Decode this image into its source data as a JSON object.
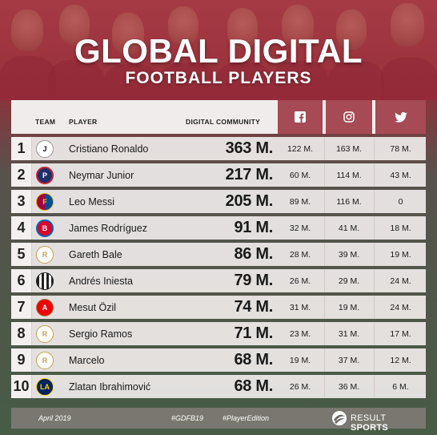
{
  "title": {
    "main": "GLOBAL DIGITAL",
    "sub": "FOOTBALL PLAYERS"
  },
  "columns": {
    "team": "TEAM",
    "player": "PLAYER",
    "digital": "DIGITAL COMMUNITY",
    "facebook_icon": "facebook-icon",
    "instagram_icon": "instagram-icon",
    "twitter_icon": "twitter-icon"
  },
  "colors": {
    "accent": "#a64a55",
    "row_bg": "#f0ecec"
  },
  "players": [
    {
      "rank": "1",
      "team_icon": "juventus-crest",
      "name": "Cristiano Ronaldo",
      "digital": "363 M.",
      "facebook": "122 M.",
      "instagram": "163 M.",
      "twitter": "78 M."
    },
    {
      "rank": "2",
      "team_icon": "psg-crest",
      "name": "Neymar Junior",
      "digital": "217 M.",
      "facebook": "60 M.",
      "instagram": "114 M.",
      "twitter": "43 M."
    },
    {
      "rank": "3",
      "team_icon": "barcelona-crest",
      "name": "Leo Messi",
      "digital": "205 M.",
      "facebook": "89 M.",
      "instagram": "116 M.",
      "twitter": "0"
    },
    {
      "rank": "4",
      "team_icon": "bayern-crest",
      "name": "James Rodríguez",
      "digital": "91 M.",
      "facebook": "32 M.",
      "instagram": "41 M.",
      "twitter": "18 M."
    },
    {
      "rank": "5",
      "team_icon": "real-madrid-crest",
      "name": "Gareth Bale",
      "digital": "86 M.",
      "facebook": "28 M.",
      "instagram": "39 M.",
      "twitter": "19 M."
    },
    {
      "rank": "6",
      "team_icon": "vissel-kobe-crest",
      "name": "Andrés Iniesta",
      "digital": "79 M.",
      "facebook": "26 M.",
      "instagram": "29 M.",
      "twitter": "24 M."
    },
    {
      "rank": "7",
      "team_icon": "arsenal-crest",
      "name": "Mesut Özil",
      "digital": "74 M.",
      "facebook": "31 M.",
      "instagram": "19 M.",
      "twitter": "24 M."
    },
    {
      "rank": "8",
      "team_icon": "real-madrid-crest",
      "name": "Sergio Ramos",
      "digital": "71 M.",
      "facebook": "23 M.",
      "instagram": "31 M.",
      "twitter": "17 M."
    },
    {
      "rank": "9",
      "team_icon": "real-madrid-crest",
      "name": "Marcelo",
      "digital": "68 M.",
      "facebook": "19 M.",
      "instagram": "37 M.",
      "twitter": "12 M."
    },
    {
      "rank": "10",
      "team_icon": "la-galaxy-crest",
      "name": "Zlatan Ibrahimović",
      "digital": "68 M.",
      "facebook": "26 M.",
      "instagram": "36 M.",
      "twitter": "6 M."
    }
  ],
  "footer": {
    "date": "April 2019",
    "tag1": "#GDFB19",
    "tag2": "#PlayerEdition",
    "brand_light": "RESULT",
    "brand_bold": "SPORTS"
  }
}
